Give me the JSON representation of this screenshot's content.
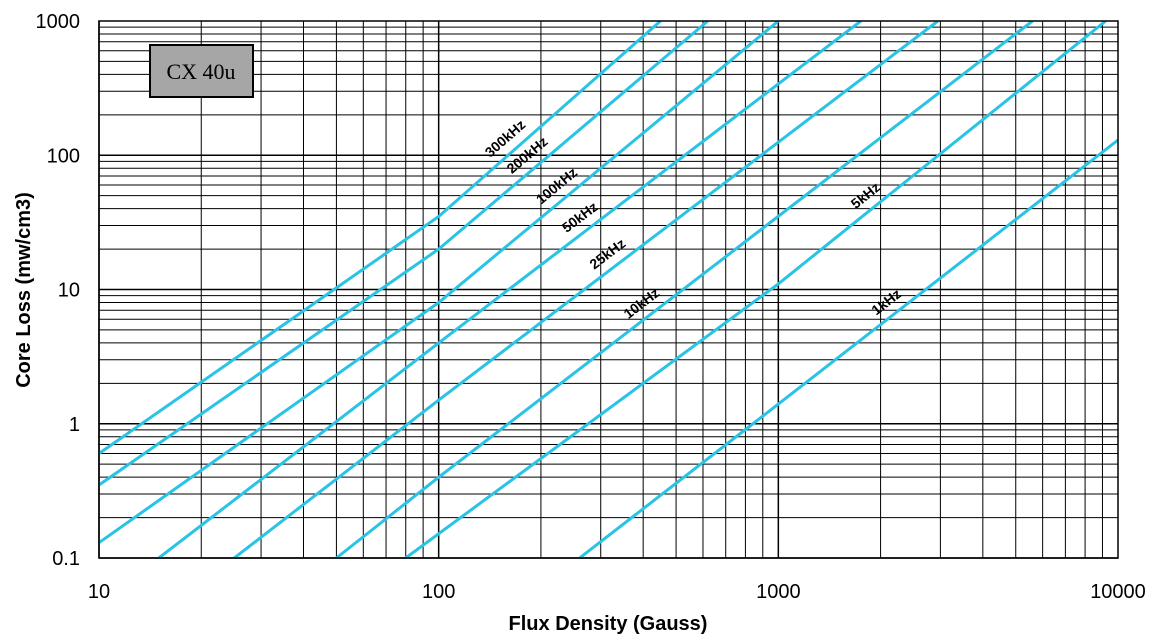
{
  "chart_data": {
    "type": "line",
    "title": "",
    "material_label": "CX 40u",
    "xlabel": "Flux Density (Gauss)",
    "ylabel": "Core Loss (mw/cm3)",
    "x_scale": "log",
    "y_scale": "log",
    "xlim": [
      10,
      10000
    ],
    "ylim": [
      0.1,
      1000
    ],
    "x_ticks": [
      "10",
      "100",
      "1000",
      "10000"
    ],
    "y_ticks": [
      "0.1",
      "1",
      "10",
      "100",
      "1000"
    ],
    "grid": true,
    "line_color": "#29c3e6",
    "series": [
      {
        "name": "300kHz",
        "points": [
          [
            10,
            0.6
          ],
          [
            100,
            35
          ],
          [
            450,
            1000
          ]
        ]
      },
      {
        "name": "200kHz",
        "points": [
          [
            10,
            0.35
          ],
          [
            100,
            20
          ],
          [
            620,
            1000
          ]
        ]
      },
      {
        "name": "100kHz",
        "points": [
          [
            10,
            0.13
          ],
          [
            100,
            8
          ],
          [
            1000,
            1000
          ]
        ]
      },
      {
        "name": "50kHz",
        "points": [
          [
            15,
            0.1
          ],
          [
            100,
            4
          ],
          [
            1750,
            1000
          ]
        ]
      },
      {
        "name": "25kHz",
        "points": [
          [
            25,
            0.1
          ],
          [
            100,
            1.5
          ],
          [
            2950,
            1000
          ]
        ]
      },
      {
        "name": "10kHz",
        "points": [
          [
            50,
            0.1
          ],
          [
            100,
            0.4
          ],
          [
            5600,
            1000
          ]
        ]
      },
      {
        "name": "5kHz",
        "points": [
          [
            80,
            0.1
          ],
          [
            1000,
            11
          ],
          [
            9200,
            1000
          ]
        ]
      },
      {
        "name": "1kHz",
        "points": [
          [
            260,
            0.1
          ],
          [
            1000,
            1.4
          ],
          [
            10000,
            130
          ]
        ]
      }
    ]
  }
}
